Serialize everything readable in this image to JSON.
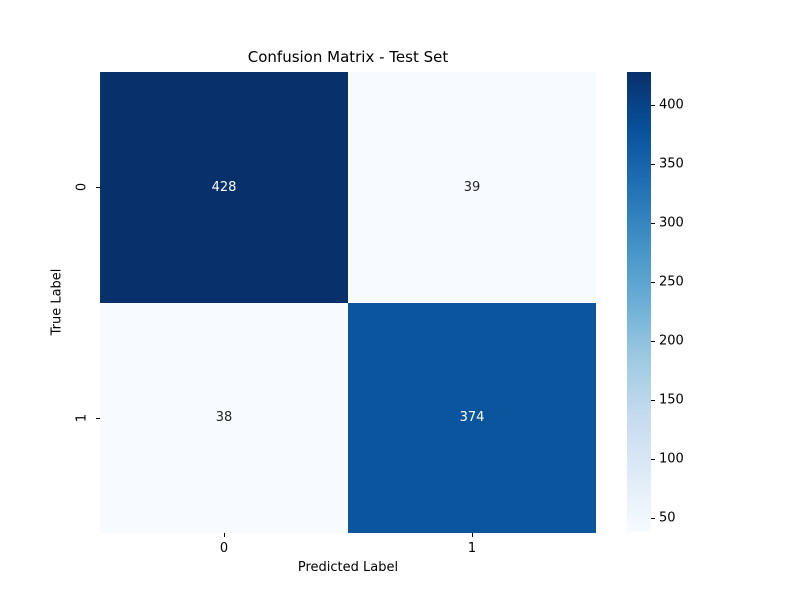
{
  "chart_data": {
    "type": "heatmap",
    "title": "Confusion Matrix - Test Set",
    "xlabel": "Predicted Label",
    "ylabel": "True Label",
    "x_tick_labels": [
      "0",
      "1"
    ],
    "y_tick_labels": [
      "0",
      "1"
    ],
    "matrix": [
      [
        428,
        39
      ],
      [
        38,
        374
      ]
    ],
    "vmin": 38,
    "vmax": 428,
    "colormap": "Blues",
    "colormap_stops": [
      "#f7fbff",
      "#deebf7",
      "#c6dbef",
      "#9ecae1",
      "#6baed6",
      "#4292c6",
      "#2171b5",
      "#08519c",
      "#08306b"
    ],
    "colorbar_ticks": [
      50,
      100,
      150,
      200,
      250,
      300,
      350,
      400
    ],
    "colorbar_position": "right",
    "grid": false,
    "cell_colors": [
      [
        "#08306b",
        "#f7fbff"
      ],
      [
        "#f7fbff",
        "#0b559f"
      ]
    ],
    "cell_text_colors": [
      [
        "#ffffff",
        "#262626"
      ],
      [
        "#262626",
        "#ffffff"
      ]
    ]
  }
}
